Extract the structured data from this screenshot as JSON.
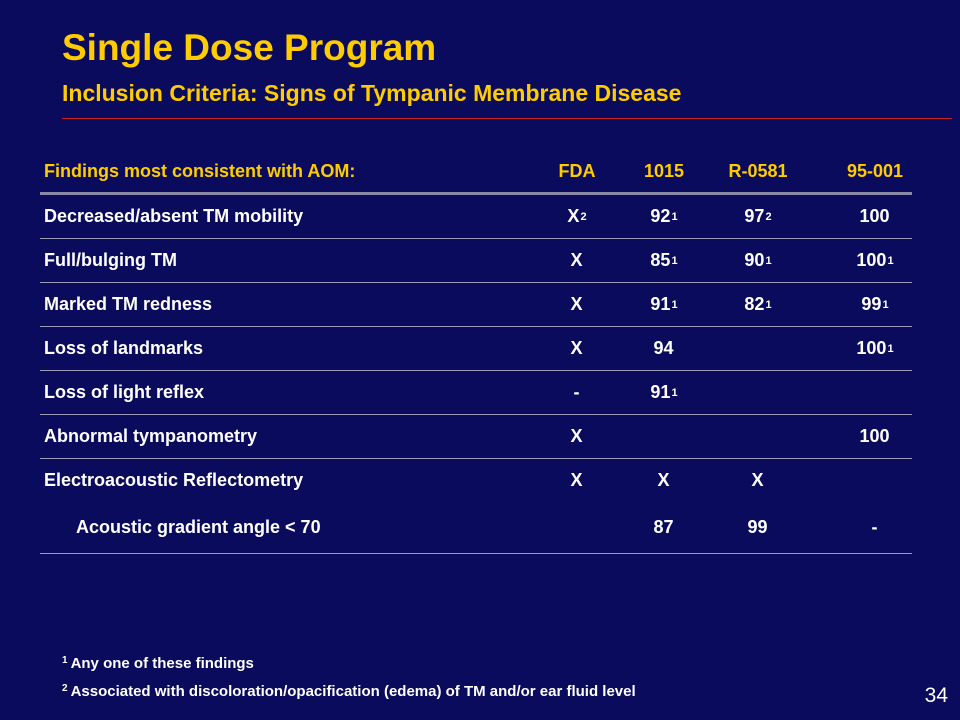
{
  "slide": {
    "title": "Single Dose Program",
    "subtitle": "Inclusion Criteria: Signs of Tympanic Membrane Disease",
    "page_number": "34"
  },
  "colors": {
    "background": "#0b0b5e",
    "heading": "#ffcc00",
    "body_text": "#ffffff",
    "title_rule": "#cc2222"
  },
  "table": {
    "headers": {
      "label": "Findings most consistent with AOM:",
      "fda": "FDA",
      "c1015": "1015",
      "r0581": "R-0581",
      "c95001": "95-001"
    },
    "rows": [
      {
        "label": "Decreased/absent  TM mobility",
        "fda": {
          "v": "X",
          "s": "2"
        },
        "c1015": {
          "v": "92",
          "s": "1"
        },
        "r0581": {
          "v": "97",
          "s": "2"
        },
        "c95001": {
          "v": "100",
          "s": ""
        }
      },
      {
        "label": "Full/bulging TM",
        "fda": {
          "v": "X",
          "s": ""
        },
        "c1015": {
          "v": "85",
          "s": "1"
        },
        "r0581": {
          "v": "90",
          "s": "1"
        },
        "c95001": {
          "v": "100",
          "s": "1"
        }
      },
      {
        "label": "Marked  TM redness",
        "fda": {
          "v": "X",
          "s": ""
        },
        "c1015": {
          "v": "91",
          "s": "1"
        },
        "r0581": {
          "v": "82",
          "s": "1"
        },
        "c95001": {
          "v": "99",
          "s": "1"
        }
      },
      {
        "label": "Loss of landmarks",
        "fda": {
          "v": "X",
          "s": ""
        },
        "c1015": {
          "v": "94",
          "s": ""
        },
        "r0581": {
          "v": "",
          "s": ""
        },
        "c95001": {
          "v": "100",
          "s": "1"
        }
      },
      {
        "label": "Loss of light reflex",
        "fda": {
          "v": "-",
          "s": ""
        },
        "c1015": {
          "v": "91",
          "s": "1"
        },
        "r0581": {
          "v": "",
          "s": ""
        },
        "c95001": {
          "v": "",
          "s": ""
        }
      },
      {
        "label": "Abnormal tympanometry",
        "fda": {
          "v": "X",
          "s": ""
        },
        "c1015": {
          "v": "",
          "s": ""
        },
        "r0581": {
          "v": "",
          "s": ""
        },
        "c95001": {
          "v": "100",
          "s": ""
        }
      },
      {
        "label": "Electroacoustic Reflectometry",
        "fda": {
          "v": "X",
          "s": ""
        },
        "c1015": {
          "v": "X",
          "s": ""
        },
        "r0581": {
          "v": "X",
          "s": ""
        },
        "c95001": {
          "v": "",
          "s": ""
        }
      },
      {
        "label": "Acoustic gradient angle < 70",
        "fda": {
          "v": "",
          "s": ""
        },
        "c1015": {
          "v": "87",
          "s": ""
        },
        "r0581": {
          "v": "99",
          "s": ""
        },
        "c95001": {
          "v": "-",
          "s": ""
        }
      }
    ]
  },
  "footnotes": [
    {
      "marker": "1",
      "text": "Any one of these findings"
    },
    {
      "marker": "2",
      "text": "Associated with discoloration/opacification (edema) of TM and/or ear fluid level"
    }
  ]
}
